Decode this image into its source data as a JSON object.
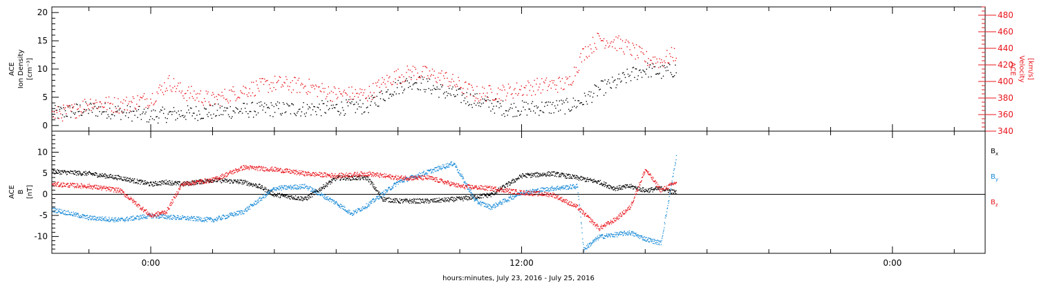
{
  "figure": {
    "xlabel": "hours:minutes, July 23, 2016 - July 25, 2016",
    "x_ticks": [
      {
        "hour": 0,
        "label": "0:00"
      },
      {
        "hour": 12,
        "label": "12:00"
      },
      {
        "hour": 24,
        "label": "0:00"
      }
    ],
    "xlim_hours": [
      -3.2,
      27.0
    ],
    "data_end_hour": 17.0
  },
  "chart_data": [
    {
      "type": "scatter",
      "panel": "top",
      "ylabel_lines": [
        "ACE",
        "Ion Density",
        "[cm⁻³]"
      ],
      "ylim": [
        -1,
        21
      ],
      "y_ticks": [
        0,
        5,
        10,
        15,
        20
      ],
      "y2label_lines": [
        "ACE",
        "Velocity",
        "[km/s]"
      ],
      "y2lim": [
        340,
        490
      ],
      "y2_ticks": [
        340,
        360,
        380,
        400,
        420,
        440,
        460,
        480
      ],
      "series": [
        {
          "axis": "left",
          "color": "#000000",
          "x": [
            -3.2,
            -2.0,
            -1.0,
            0.0,
            1.0,
            2.0,
            3.0,
            4.0,
            5.0,
            6.0,
            7.0,
            7.8,
            8.5,
            9.5,
            10.5,
            11.5,
            12.5,
            13.5,
            14.0,
            14.5,
            15.0,
            15.5,
            16.0,
            16.5,
            17.0
          ],
          "y": [
            2.2,
            3.0,
            2.5,
            1.8,
            2.2,
            2.5,
            2.8,
            3.0,
            3.0,
            3.2,
            3.5,
            6.5,
            8.0,
            6.0,
            4.5,
            3.0,
            3.2,
            3.5,
            4.5,
            6.5,
            7.5,
            9.0,
            10.0,
            9.5,
            10.0
          ]
        },
        {
          "axis": "right",
          "color": "#e8141b",
          "x": [
            -3.2,
            -2.5,
            -2.0,
            -1.0,
            0.0,
            0.6,
            1.0,
            2.0,
            3.0,
            4.0,
            5.0,
            6.0,
            7.0,
            7.8,
            8.5,
            9.5,
            10.5,
            11.5,
            12.5,
            13.5,
            14.0,
            14.5,
            15.0,
            15.5,
            16.0,
            16.5,
            17.0
          ],
          "y": [
            360,
            365,
            375,
            372,
            380,
            400,
            388,
            378,
            390,
            398,
            395,
            385,
            385,
            405,
            412,
            405,
            385,
            388,
            395,
            398,
            435,
            452,
            448,
            440,
            428,
            425,
            435
          ]
        }
      ]
    },
    {
      "type": "scatter",
      "panel": "bottom",
      "ylabel_lines": [
        "ACE",
        "B",
        "[nT]"
      ],
      "ylim": [
        -14,
        15
      ],
      "y_ticks": [
        -10,
        -5,
        0,
        5,
        10
      ],
      "zero_line": true,
      "series": [
        {
          "name": "Bx",
          "label_main": "B",
          "label_sub": "x",
          "color": "#000000",
          "x": [
            -3.2,
            -2.0,
            -1.0,
            0.0,
            0.5,
            1.0,
            2.0,
            3.0,
            3.5,
            4.0,
            5.0,
            6.0,
            7.0,
            7.5,
            8.0,
            9.0,
            10.0,
            11.0,
            12.0,
            13.0,
            13.8,
            14.5,
            15.0,
            15.5,
            16.0,
            16.5,
            17.0
          ],
          "y": [
            5.5,
            5.0,
            4.0,
            2.5,
            3.0,
            2.5,
            3.5,
            3.0,
            2.0,
            0.0,
            -1.0,
            4.0,
            4.0,
            -1.0,
            -1.5,
            -1.5,
            -1.0,
            0.0,
            4.5,
            5.0,
            4.0,
            3.0,
            1.5,
            2.0,
            1.0,
            1.5,
            0.5
          ]
        },
        {
          "name": "By",
          "label_main": "B",
          "label_sub": "y",
          "color": "#1689d6",
          "x": [
            -3.2,
            -2.0,
            -1.0,
            0.0,
            1.0,
            2.0,
            3.0,
            4.0,
            5.0,
            6.0,
            6.5,
            7.0,
            8.0,
            9.0,
            9.8,
            10.5,
            11.0,
            12.0,
            13.0,
            13.8,
            14.0,
            14.5,
            15.0,
            15.5,
            16.0,
            16.5,
            17.0
          ],
          "y": [
            -3.5,
            -5.5,
            -6.0,
            -5.0,
            -5.5,
            -6.0,
            -4.0,
            1.5,
            2.0,
            -2.0,
            -4.5,
            -2.5,
            3.0,
            5.5,
            7.5,
            -1.5,
            -3.0,
            0.5,
            1.5,
            2.0,
            -13.0,
            -10.0,
            -9.5,
            -9.0,
            -10.5,
            -11.5,
            9.0
          ]
        },
        {
          "name": "Bz",
          "label_main": "B",
          "label_sub": "z",
          "color": "#e8141b",
          "x": [
            -3.2,
            -2.0,
            -1.0,
            0.0,
            0.5,
            1.0,
            2.0,
            3.0,
            4.0,
            5.0,
            6.0,
            7.0,
            8.0,
            9.0,
            10.0,
            11.0,
            12.0,
            13.0,
            13.8,
            14.5,
            15.0,
            15.5,
            16.0,
            16.5,
            17.0
          ],
          "y": [
            2.5,
            2.0,
            1.0,
            -5.0,
            -4.0,
            2.5,
            3.5,
            6.5,
            6.0,
            5.0,
            4.5,
            5.0,
            4.0,
            4.0,
            2.0,
            1.5,
            0.5,
            0.0,
            -3.0,
            -8.0,
            -6.0,
            -3.0,
            6.0,
            1.0,
            3.0
          ]
        }
      ]
    }
  ]
}
